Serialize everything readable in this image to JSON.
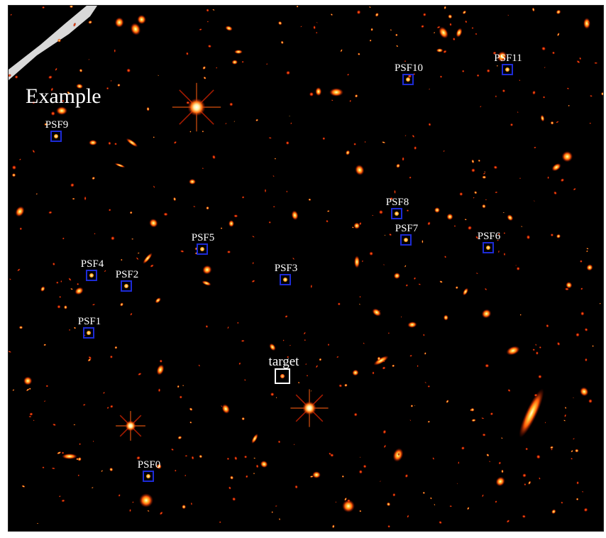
{
  "panel_title": "Example",
  "colors": {
    "background": "#000000",
    "psf_box": "#1d2bd6",
    "target_box": "#ffffff",
    "source_core": "#fff6c8",
    "source_mid": "#ff7a10",
    "source_halo": "#c01000"
  },
  "psf_labels": [
    "PSF0",
    "PSF1",
    "PSF2",
    "PSF3",
    "PSF4",
    "PSF5",
    "PSF6",
    "PSF7",
    "PSF8",
    "PSF9",
    "PSF10",
    "PSF11"
  ],
  "target_label": "target"
}
